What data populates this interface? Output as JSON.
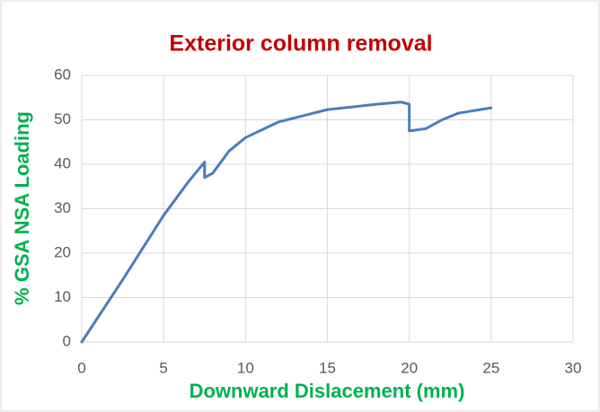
{
  "chart_data": {
    "type": "line",
    "title": "Exterior column removal",
    "x_label": "Downward Dislacement (mm)",
    "y_label": "% GSA NSA Loading",
    "series": [
      {
        "name": "Exterior column removal",
        "color": "#4a7ebb",
        "x": [
          0,
          2.5,
          5,
          6.5,
          7.5,
          7.5,
          8,
          9,
          10,
          12,
          15,
          18,
          19.5,
          20,
          20,
          21,
          22,
          23,
          25
        ],
        "values": [
          0,
          14,
          28.5,
          36,
          40.5,
          37,
          38,
          43,
          46,
          49.5,
          52.3,
          53.5,
          54,
          53.5,
          47.5,
          48,
          50,
          51.5,
          52.7
        ]
      }
    ],
    "xlim": [
      0,
      30
    ],
    "xticks": [
      0,
      5,
      10,
      15,
      20,
      25,
      30
    ],
    "ylim": [
      0,
      60
    ],
    "yticks": [
      0,
      10,
      20,
      30,
      40,
      50,
      60
    ],
    "grid": true
  }
}
